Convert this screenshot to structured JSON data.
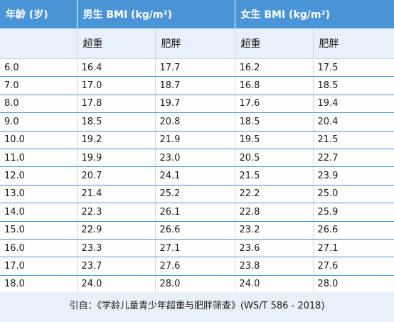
{
  "header": {
    "age_label": "年龄 (岁)",
    "male_label": "男生 BMI (kg/m²)",
    "female_label": "女生 BMI (kg/m²)",
    "male_overweight": "超重",
    "male_obese": "肥胖",
    "female_overweight": "超重",
    "female_obese": "肥胖"
  },
  "rows": [
    [
      "6.0",
      "16.4",
      "17.7",
      "16.2",
      "17.5"
    ],
    [
      "7.0",
      "17.0",
      "18.7",
      "16.8",
      "18.5"
    ],
    [
      "8.0",
      "17.8",
      "19.7",
      "17.6",
      "19.4"
    ],
    [
      "9.0",
      "18.5",
      "20.8",
      "18.5",
      "20.4"
    ],
    [
      "10.0",
      "19.2",
      "21.9",
      "19.5",
      "21.5"
    ],
    [
      "11.0",
      "19.9",
      "23.0",
      "20.5",
      "22.7"
    ],
    [
      "12.0",
      "20.7",
      "24.1",
      "21.5",
      "23.9"
    ],
    [
      "13.0",
      "21.4",
      "25.2",
      "22.2",
      "25.0"
    ],
    [
      "14.0",
      "22.3",
      "26.1",
      "22.8",
      "25.9"
    ],
    [
      "15.0",
      "22.9",
      "26.6",
      "23.2",
      "26.6"
    ],
    [
      "16.0",
      "23.3",
      "27.1",
      "23.6",
      "27.1"
    ],
    [
      "17.0",
      "23.7",
      "27.6",
      "23.8",
      "27.6"
    ],
    [
      "18.0",
      "24.0",
      "28.0",
      "24.0",
      "28.0"
    ]
  ],
  "footer": {
    "citation": "引自：《学龄儿童青少年超重与肥胖筛查》(WS/T 586 - 2018)"
  },
  "colors": {
    "header_bg": "#4a94d8",
    "subheader_bg": "#e8f1fb",
    "row_border": "#4a94d8"
  }
}
